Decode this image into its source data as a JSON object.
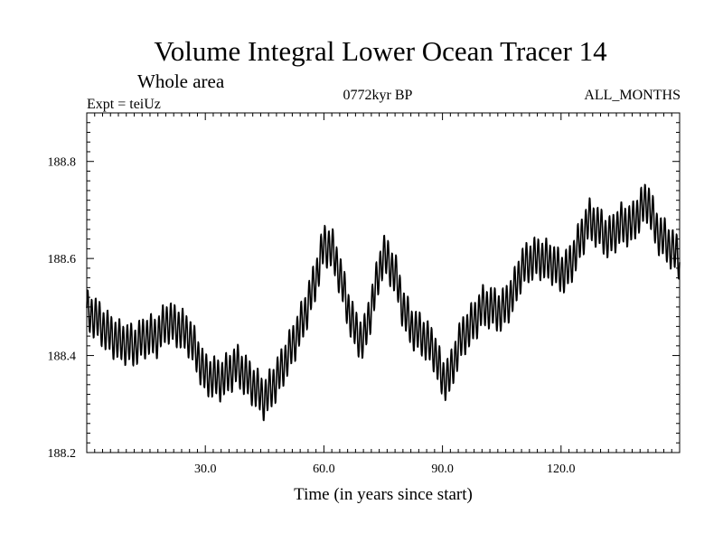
{
  "chart_data": {
    "type": "line",
    "title": "Volume Integral Lower Ocean Tracer 14",
    "subtitle": "Whole area",
    "expt_label": "Expt = teiUz",
    "period_label": "0772kyr BP",
    "months_label": "ALL_MONTHS",
    "xlabel": "Time (in years since start)",
    "ylabel": "",
    "xlim": [
      0,
      150
    ],
    "ylim": [
      188.2,
      188.9
    ],
    "x_ticks": [
      30,
      60,
      90,
      120
    ],
    "x_tick_labels": [
      "30.0",
      "60.0",
      "90.0",
      "120.0"
    ],
    "y_ticks": [
      188.2,
      188.4,
      188.6,
      188.8
    ],
    "y_tick_labels": [
      "188.2",
      "188.4",
      "188.6",
      "188.8"
    ],
    "grid": false,
    "line_color": "#000000",
    "series": [
      {
        "name": "tracer14",
        "seasonal_amplitude": 0.04,
        "trend": {
          "x": [
            0,
            2,
            5,
            8,
            12,
            15,
            18,
            20,
            23,
            26,
            30,
            34,
            38,
            42,
            45,
            48,
            52,
            55,
            58,
            60,
            62,
            64,
            66,
            68,
            70,
            72,
            75,
            78,
            80,
            82,
            85,
            88,
            90,
            92,
            94,
            96,
            98,
            100,
            102,
            105,
            108,
            110,
            113,
            115,
            118,
            120,
            122,
            125,
            127,
            130,
            132,
            135,
            138,
            140,
            142,
            144,
            146,
            148,
            150
          ],
          "y": [
            188.49,
            188.48,
            188.45,
            188.43,
            188.42,
            188.44,
            188.44,
            188.47,
            188.46,
            188.44,
            188.36,
            188.35,
            188.38,
            188.34,
            188.31,
            188.35,
            188.42,
            188.48,
            188.56,
            188.63,
            188.62,
            188.57,
            188.5,
            188.45,
            188.43,
            188.5,
            188.61,
            188.57,
            188.5,
            188.46,
            188.44,
            188.41,
            188.35,
            188.36,
            188.42,
            188.45,
            188.47,
            188.5,
            188.5,
            188.49,
            188.53,
            188.58,
            188.6,
            188.6,
            188.59,
            188.57,
            188.58,
            188.64,
            188.68,
            188.66,
            188.64,
            188.67,
            188.67,
            188.7,
            188.72,
            188.66,
            188.64,
            188.62,
            188.6
          ]
        }
      }
    ]
  }
}
